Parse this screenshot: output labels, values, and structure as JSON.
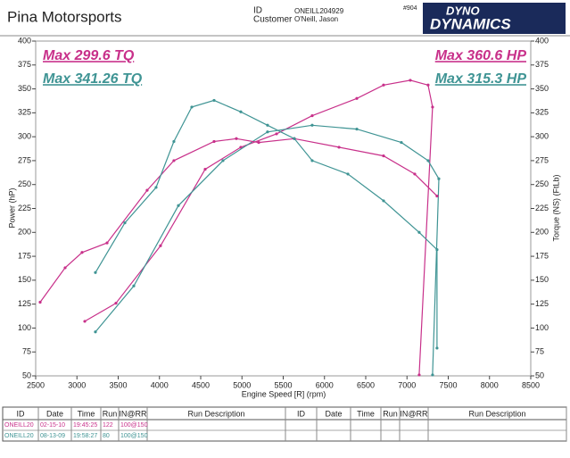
{
  "header": {
    "company": "Pina Motorsports",
    "id_label": "ID",
    "id_value": "ONEILL204929",
    "customer_label": "Customer",
    "customer_value": "O'Neill, Jason",
    "number": "#904",
    "logo_top": "DYNO",
    "logo_bottom": "DYNAMICS"
  },
  "chart_data": {
    "type": "line",
    "x_label": "Engine Speed [R] (rpm)",
    "y_label": "Power (hP)",
    "y2_label": "Torque (NS) (FtLb)",
    "xlim": [
      2500,
      8500
    ],
    "xticks": [
      2500,
      3000,
      3500,
      4000,
      4500,
      5000,
      5500,
      6000,
      6500,
      7000,
      7500,
      8000,
      8500
    ],
    "ylim": [
      50,
      400
    ],
    "yticks": [
      50,
      75,
      100,
      125,
      150,
      175,
      200,
      225,
      250,
      275,
      300,
      325,
      350,
      375,
      400
    ],
    "y2lim": [
      50,
      400
    ],
    "y2ticks": [
      50,
      75,
      100,
      125,
      150,
      175,
      200,
      225,
      250,
      275,
      300,
      325,
      350,
      375,
      400
    ],
    "annotations": [
      {
        "text": "Max  299.6 TQ",
        "color": "#c8308a"
      },
      {
        "text": "Max 341.26 TQ",
        "color": "#3f9494"
      },
      {
        "text": "Max 360.6 HP",
        "color": "#c8308a"
      },
      {
        "text": "Max 315.3 HP",
        "color": "#3f9494"
      }
    ],
    "series": [
      {
        "color": "#c8308a",
        "x": [
          3095,
          3473,
          4013,
          4554,
          4986,
          5419,
          5851,
          6392,
          6716,
          7040,
          7256,
          7310,
          7148
        ],
        "values": [
          107,
          126,
          186,
          266,
          289,
          303,
          322,
          340,
          354,
          359,
          354,
          331,
          51
        ]
      },
      {
        "color": "#3f9494",
        "x": [
          3224,
          3689,
          4230,
          4770,
          5310,
          5851,
          6392,
          6932,
          7256,
          7386,
          7310
        ],
        "values": [
          96,
          144,
          228,
          275,
          305,
          312,
          308,
          294,
          275,
          256,
          51
        ]
      },
      {
        "color": "#c8308a",
        "axis": "y2",
        "x": [
          2554,
          2857,
          3062,
          3365,
          3851,
          4175,
          4662,
          4932,
          5203,
          5635,
          6176,
          6716,
          7094,
          7364
        ],
        "values": [
          127,
          163,
          179,
          189,
          244,
          275,
          295,
          298,
          294,
          298,
          289,
          280,
          261,
          238
        ]
      },
      {
        "color": "#3f9494",
        "axis": "y2",
        "x": [
          3224,
          3581,
          3959,
          4175,
          4392,
          4662,
          4986,
          5310,
          5635,
          5851,
          6284,
          6716,
          7148,
          7364,
          7364
        ],
        "values": [
          158,
          210,
          247,
          295,
          331,
          338,
          326,
          312,
          298,
          275,
          261,
          233,
          200,
          182,
          79
        ]
      }
    ]
  },
  "table": {
    "headers": [
      "ID",
      "Date",
      "Time",
      "Run",
      "IN@RR",
      "Run Description",
      "ID",
      "Date",
      "Time",
      "Run",
      "IN@RR",
      "Run Description"
    ],
    "rows": [
      [
        "ONEILL20",
        "02-15-10",
        "19:45:25",
        "122",
        "100@150"
      ],
      [
        "ONEILL20",
        "08-13-09",
        "19:58:27",
        "80",
        "100@150"
      ]
    ]
  }
}
